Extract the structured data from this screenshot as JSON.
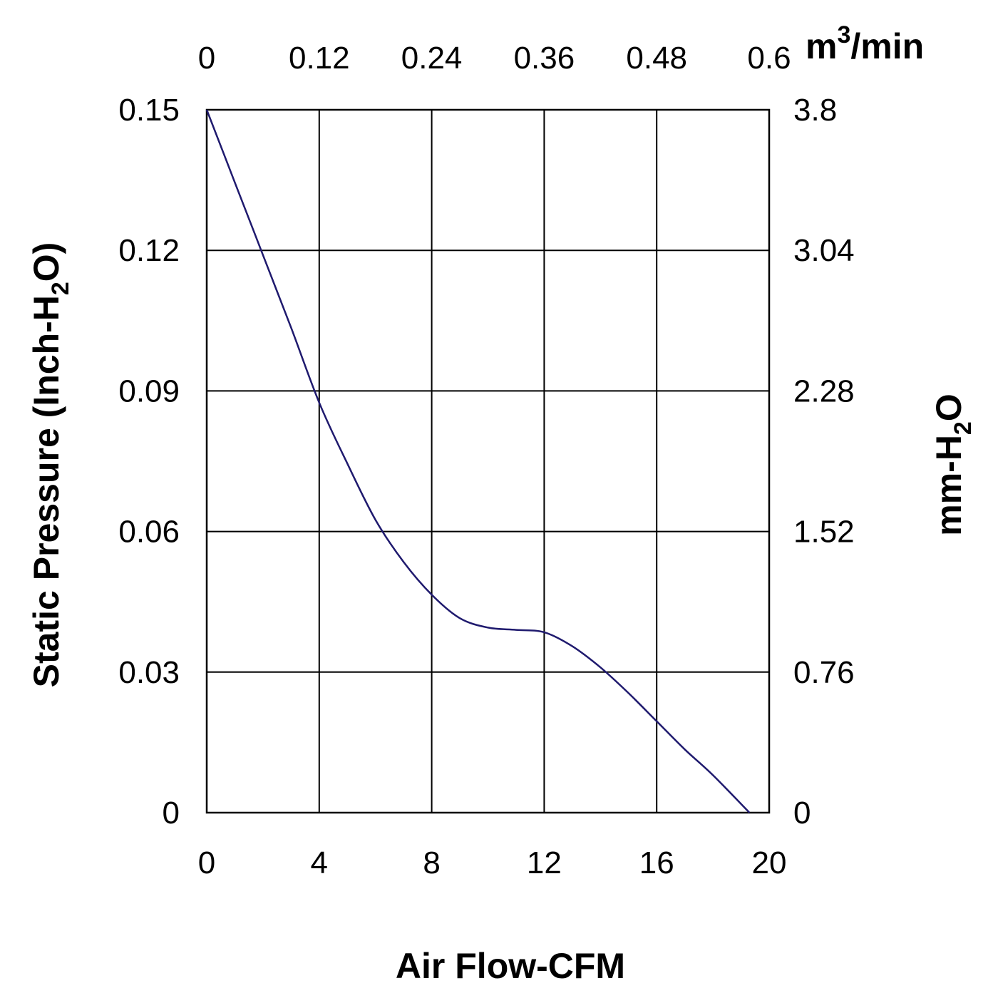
{
  "chart_data": {
    "type": "line",
    "title": "",
    "xlabel": "Air Flow-CFM",
    "ylabel": {
      "prefix": "Static Pressure (Inch-H",
      "subscript": "2",
      "suffix": "O)"
    },
    "y2label": {
      "prefix": "mm-H",
      "subscript": "2",
      "suffix": "O"
    },
    "x2label": {
      "prefix": "m",
      "superscript": "3",
      "suffix": "/min"
    },
    "xlim": [
      0,
      20
    ],
    "ylim": [
      0,
      0.15
    ],
    "grid": true,
    "x_ticks": [
      "0",
      "4",
      "8",
      "12",
      "16",
      "20"
    ],
    "x_tick_values": [
      0,
      4,
      8,
      12,
      16,
      20
    ],
    "y_ticks": [
      "0",
      "0.03",
      "0.06",
      "0.09",
      "0.12",
      "0.15"
    ],
    "y_tick_values": [
      0,
      0.03,
      0.06,
      0.09,
      0.12,
      0.15
    ],
    "x2_ticks": [
      "0",
      "0.12",
      "0.24",
      "0.36",
      "0.48",
      "0.6"
    ],
    "y2_ticks": [
      "0",
      "0.76",
      "1.52",
      "2.28",
      "3.04",
      "3.8"
    ],
    "line_color": "#1f1a6e",
    "series": [
      {
        "x": [
          0,
          1,
          2,
          3,
          4,
          5,
          6,
          7,
          8,
          9,
          10,
          11,
          12,
          13,
          14,
          15,
          16,
          17,
          18,
          19.3
        ],
        "y": [
          0.15,
          0.1345,
          0.119,
          0.1035,
          0.0875,
          0.0745,
          0.0625,
          0.0535,
          0.0465,
          0.0415,
          0.0395,
          0.039,
          0.0385,
          0.0355,
          0.031,
          0.0255,
          0.0195,
          0.0135,
          0.008,
          0.0
        ]
      }
    ]
  }
}
